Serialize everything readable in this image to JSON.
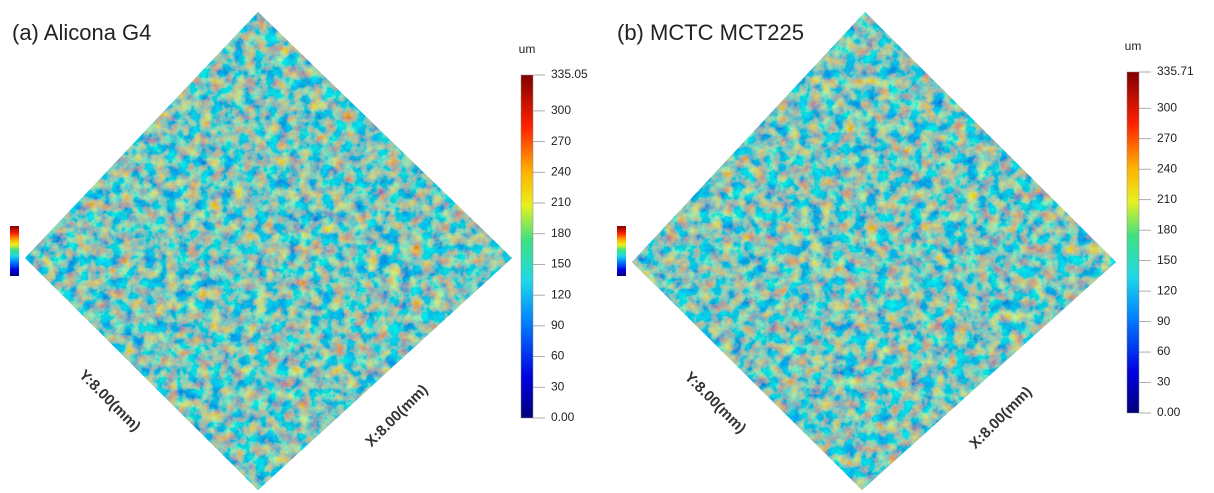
{
  "panels": [
    {
      "title": "(a) Alicona G4",
      "unit": "um",
      "colorbar_ticks": [
        {
          "value": 0,
          "label": "0.00"
        },
        30,
        60,
        90,
        120,
        150,
        180,
        210,
        240,
        270,
        300,
        335.05
      ],
      "x_label": "X:8.00(mm)",
      "y_label": "Y:8.00(mm)"
    },
    {
      "title": "(b) MCTC MCT225",
      "unit": "um",
      "colorbar_ticks": [
        {
          "value": 0,
          "label": "0.00"
        },
        30,
        60,
        90,
        120,
        150,
        180,
        210,
        240,
        270,
        300,
        335.71
      ],
      "x_label": "X:8.00(mm)",
      "y_label": "Y:8.00(mm)"
    }
  ]
}
